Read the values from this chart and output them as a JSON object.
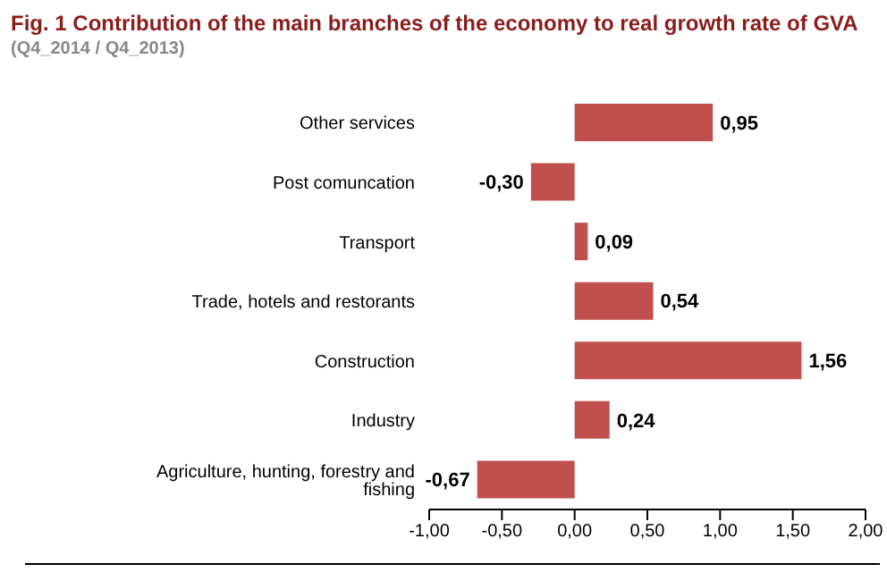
{
  "chart_data": {
    "type": "bar",
    "orientation": "horizontal",
    "title": "Fig. 1 Contribution of the main branches of the economy to real growth rate of GVA",
    "subtitle": "(Q4_2014 / Q4_2013)",
    "categories": [
      "Other services",
      "Post comuncation",
      "Transport",
      "Trade, hotels and restorants",
      "Construction",
      "Industry",
      "Agriculture, hunting, forestry and fishing"
    ],
    "values": [
      0.95,
      -0.3,
      0.09,
      0.54,
      1.56,
      0.24,
      -0.67
    ],
    "value_labels": [
      "0,95",
      "-0,30",
      "0,09",
      "0,54",
      "1,56",
      "0,24",
      "-0,67"
    ],
    "color": "#c0504d",
    "xlim": [
      -1,
      2
    ],
    "xticks": [
      {
        "value": -1,
        "label": "-1,00"
      },
      {
        "value": -0.5,
        "label": "-0,50"
      },
      {
        "value": 0,
        "label": "0,00"
      },
      {
        "value": 0.5,
        "label": "0,50"
      },
      {
        "value": 1,
        "label": "1,00"
      },
      {
        "value": 1.5,
        "label": "1,50"
      },
      {
        "value": 2,
        "label": "2,00"
      }
    ]
  }
}
